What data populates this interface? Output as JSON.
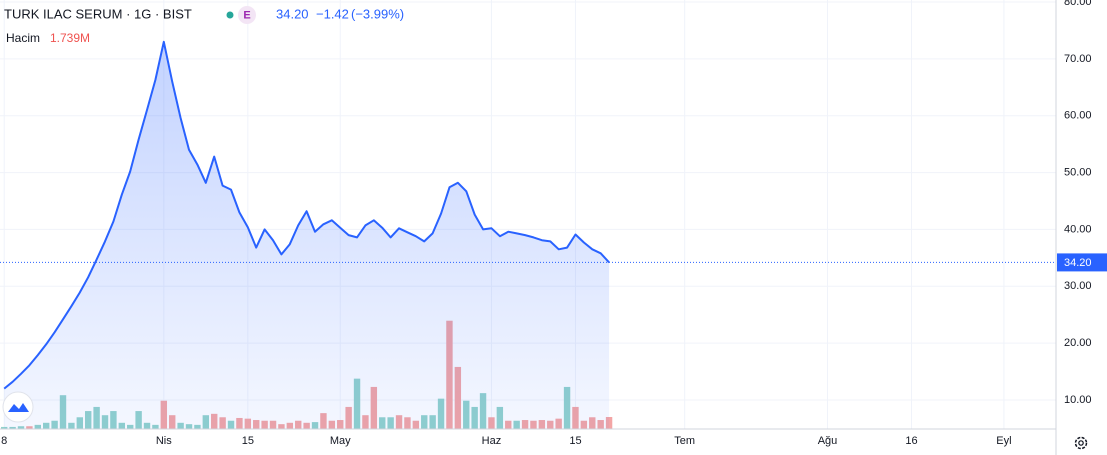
{
  "chart_data": {
    "type": "area",
    "title": "TURK ILAC SERUM · 1G · BIST",
    "badge": "E",
    "price": "34.20",
    "change": "−1.42",
    "change_pct": "(−3.99%)",
    "volume_title": "Hacim",
    "volume_last": "1.739M",
    "x": [
      0,
      1,
      2,
      3,
      4,
      5,
      6,
      7,
      8,
      9,
      10,
      11,
      12,
      13,
      14,
      15,
      16,
      17,
      18,
      19,
      20,
      21,
      22,
      23,
      24,
      25,
      26,
      27,
      28,
      29,
      30,
      31,
      32,
      33,
      34,
      35,
      36,
      37,
      38,
      39,
      40,
      41,
      42,
      43,
      44,
      45,
      46,
      47,
      48,
      49,
      50,
      51,
      52,
      53,
      54,
      55,
      56,
      57,
      58,
      59,
      60,
      61,
      62,
      63,
      64,
      65,
      66,
      67,
      68,
      69,
      70,
      71,
      72
    ],
    "series": [
      {
        "color": "#2962ff",
        "values": [
          12,
          13.2,
          14.6,
          16.1,
          17.9,
          19.8,
          21.9,
          24.2,
          26.5,
          28.9,
          31.6,
          34.7,
          37.9,
          41.4,
          46.1,
          50.2,
          55.8,
          61.0,
          66.3,
          73,
          66,
          59.6,
          54.0,
          51.4,
          48.2,
          52.8,
          47.7,
          47,
          43,
          40.4,
          36.8,
          40,
          38.1,
          35.6,
          37.4,
          40.7,
          43.2,
          39.6,
          40.9,
          41.6,
          40.3,
          39,
          38.6,
          40.7,
          41.6,
          40.3,
          38.6,
          40.2,
          39.5,
          38.8,
          37.9,
          39.3,
          42.8,
          47.4,
          48.2,
          46.7,
          42.6,
          40,
          40.2,
          38.8,
          39.6,
          39.3,
          39,
          38.6,
          38.1,
          37.9,
          36.5,
          36.8,
          39.1,
          37.7,
          36.5,
          35.8,
          34.2
        ]
      }
    ],
    "volume": {
      "values": [
        0.3,
        0.3,
        0.4,
        0.4,
        0.6,
        0.9,
        1.2,
        4.9,
        0.9,
        1.7,
        2.6,
        3.2,
        2.0,
        2.6,
        0.9,
        0.6,
        2.6,
        0.9,
        0.6,
        4.1,
        2.0,
        0.9,
        0.7,
        0.6,
        2.0,
        2.2,
        1.7,
        1.2,
        1.6,
        1.5,
        1.3,
        1.2,
        1.2,
        0.7,
        0.9,
        1.2,
        0.9,
        1.0,
        2.3,
        1.2,
        1.3,
        3.2,
        7.3,
        2.0,
        6.1,
        1.7,
        1.7,
        2.0,
        1.7,
        1.2,
        2.0,
        2.0,
        4.4,
        15.7,
        9.0,
        4.1,
        3.2,
        5.2,
        1.7,
        3.2,
        1.2,
        1.2,
        1.3,
        1.2,
        1.3,
        1.2,
        1.5,
        6.1,
        3.2,
        1.2,
        1.7,
        1.3,
        1.739
      ],
      "colors": [
        "#92d2cc",
        "#92d2cc",
        "#92d2cc",
        "#f3a5a5",
        "#92d2cc",
        "#92d2cc",
        "#92d2cc",
        "#92d2cc",
        "#92d2cc",
        "#92d2cc",
        "#92d2cc",
        "#92d2cc",
        "#92d2cc",
        "#92d2cc",
        "#92d2cc",
        "#92d2cc",
        "#92d2cc",
        "#92d2cc",
        "#92d2cc",
        "#f3a5a5",
        "#f3a5a5",
        "#92d2cc",
        "#92d2cc",
        "#92d2cc",
        "#92d2cc",
        "#f3a5a5",
        "#f3a5a5",
        "#92d2cc",
        "#f3a5a5",
        "#f3a5a5",
        "#f3a5a5",
        "#f3a5a5",
        "#f3a5a5",
        "#f3a5a5",
        "#f3a5a5",
        "#f3a5a5",
        "#f3a5a5",
        "#92d2cc",
        "#f3a5a5",
        "#f3a5a5",
        "#f3a5a5",
        "#f3a5a5",
        "#92d2cc",
        "#f3a5a5",
        "#f3a5a5",
        "#92d2cc",
        "#92d2cc",
        "#f3a5a5",
        "#f3a5a5",
        "#f3a5a5",
        "#92d2cc",
        "#92d2cc",
        "#92d2cc",
        "#f3a5a5",
        "#f3a5a5",
        "#92d2cc",
        "#92d2cc",
        "#92d2cc",
        "#f3a5a5",
        "#92d2cc",
        "#f3a5a5",
        "#92d2cc",
        "#f3a5a5",
        "#f3a5a5",
        "#f3a5a5",
        "#f3a5a5",
        "#f3a5a5",
        "#92d2cc",
        "#f3a5a5",
        "#f3a5a5",
        "#f3a5a5",
        "#f3a5a5",
        "#f3a5a5"
      ],
      "ylim": [
        0,
        62.2
      ]
    },
    "xlim": [
      -0.5,
      125.2
    ],
    "xticks": [
      {
        "value": 0,
        "label": "8"
      },
      {
        "value": 19,
        "label": "Nis"
      },
      {
        "value": 29,
        "label": "15"
      },
      {
        "value": 40,
        "label": "May"
      },
      {
        "value": 58,
        "label": "Haz"
      },
      {
        "value": 68,
        "label": "15"
      },
      {
        "value": 81,
        "label": "Tem"
      },
      {
        "value": 98,
        "label": "Ağu"
      },
      {
        "value": 108,
        "label": "16"
      },
      {
        "value": 119,
        "label": "Eyl"
      }
    ],
    "ylim": [
      4.9,
      80.35
    ],
    "yticks": [
      {
        "value": 10,
        "label": "10.00"
      },
      {
        "value": 20,
        "label": "20.00"
      },
      {
        "value": 30,
        "label": "30.00"
      },
      {
        "value": 40,
        "label": "40.00"
      },
      {
        "value": 50,
        "label": "50.00"
      },
      {
        "value": 60,
        "label": "60.00"
      },
      {
        "value": 70,
        "label": "70.00"
      },
      {
        "value": 80,
        "label": "80.00"
      }
    ],
    "last_value": {
      "value": 34.2,
      "label": "34.20"
    },
    "grid": true
  }
}
